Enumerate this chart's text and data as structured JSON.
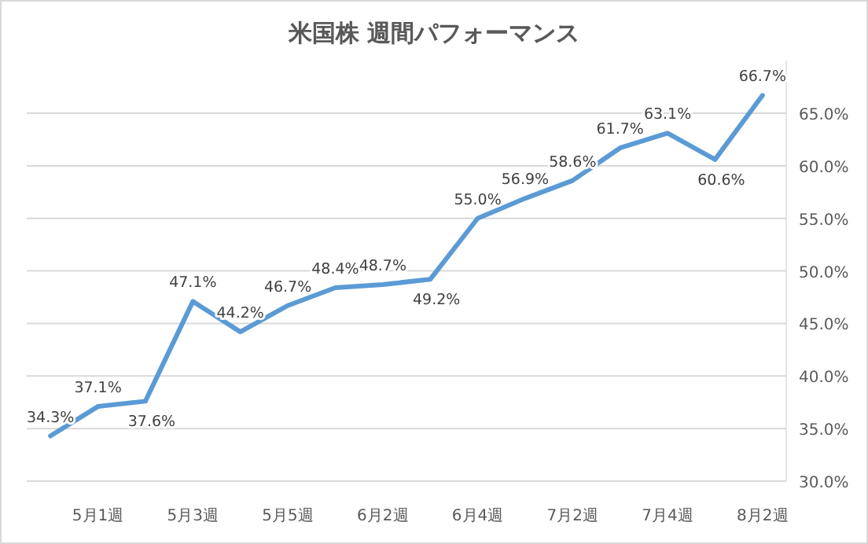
{
  "chart_data": {
    "type": "line",
    "title": "米国株 週間パフォーマンス",
    "categories": [
      null,
      "5月1週",
      null,
      "5月3週",
      null,
      "5月5週",
      null,
      "6月2週",
      null,
      "6月4週",
      null,
      "7月2週",
      null,
      "7月4週",
      null,
      "8月2週"
    ],
    "series": [
      {
        "color": "#5b9bd5",
        "values": [
          34.3,
          37.1,
          37.6,
          47.1,
          44.2,
          46.7,
          48.4,
          48.7,
          49.2,
          55.0,
          56.9,
          58.6,
          61.7,
          63.1,
          60.6,
          66.7
        ],
        "value_labels": [
          "34.3%",
          "37.1%",
          "37.6%",
          "47.1%",
          "44.2%",
          "46.7%",
          "48.4%",
          "48.7%",
          "49.2%",
          "55.0%",
          "56.9%",
          "58.6%",
          "61.7%",
          "63.1%",
          "60.6%",
          "66.7%"
        ]
      }
    ],
    "yticks": [
      {
        "value": 30,
        "label": "30.0%"
      },
      {
        "value": 35,
        "label": "35.0%"
      },
      {
        "value": 40,
        "label": "40.0%"
      },
      {
        "value": 45,
        "label": "45.0%"
      },
      {
        "value": 50,
        "label": "50.0%"
      },
      {
        "value": 55,
        "label": "55.0%"
      },
      {
        "value": 60,
        "label": "60.0%"
      },
      {
        "value": 65,
        "label": "65.0%"
      }
    ],
    "ylim": [
      30,
      70
    ],
    "grid": "y",
    "marker": "none",
    "line_style": "solid"
  }
}
